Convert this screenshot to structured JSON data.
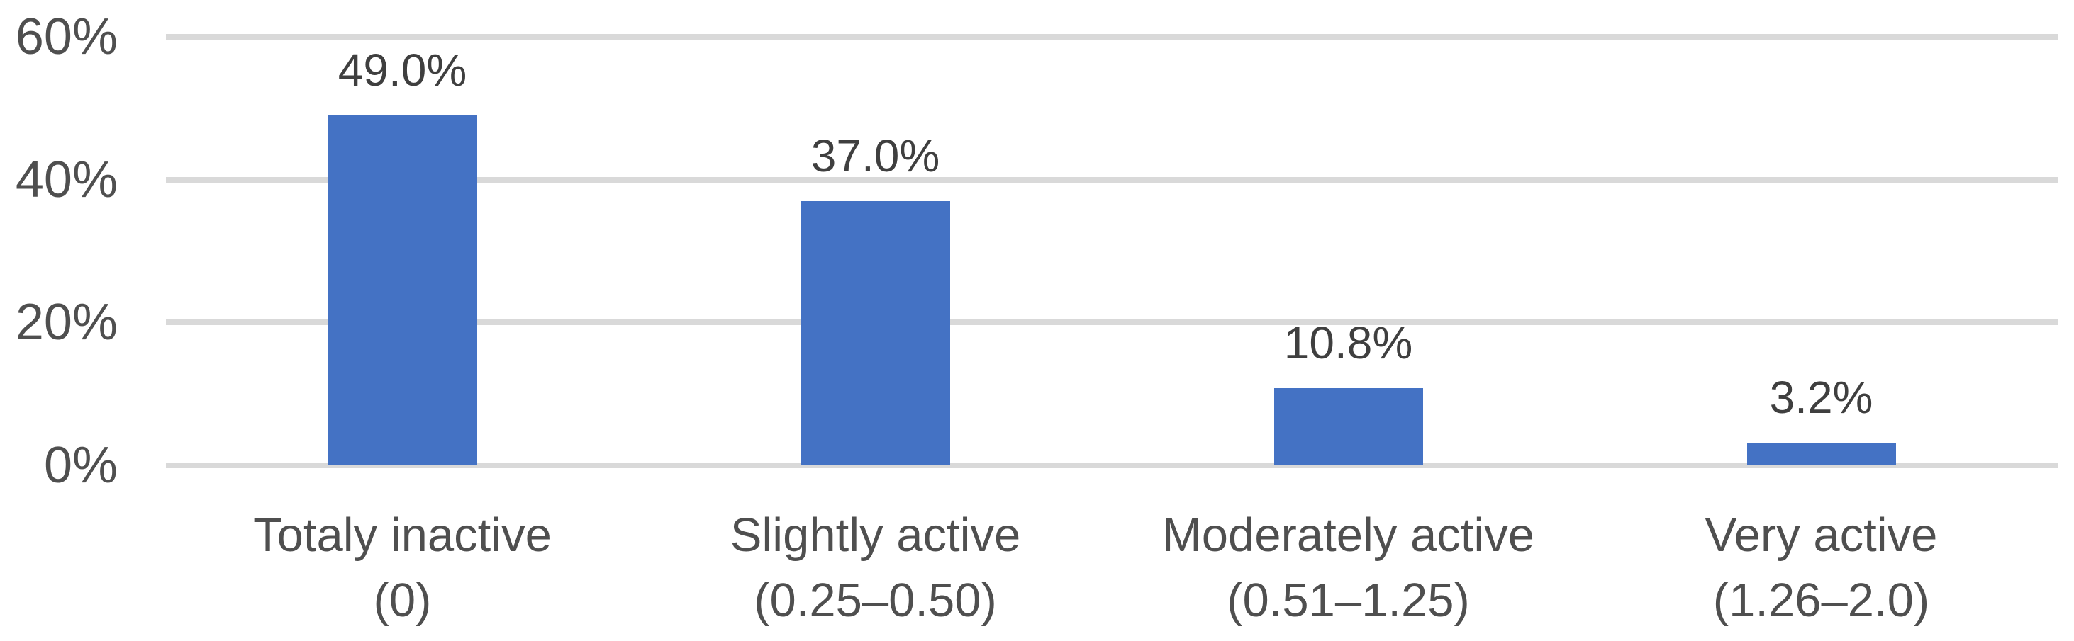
{
  "chart_data": {
    "type": "bar",
    "title": "",
    "xlabel": "",
    "ylabel": "",
    "categories": [
      {
        "line1": "Totaly inactive",
        "line2": "(0)"
      },
      {
        "line1": "Slightly active",
        "line2": "(0.25–0.50)"
      },
      {
        "line1": "Moderately active",
        "line2": "(0.51–1.25)"
      },
      {
        "line1": "Very active",
        "line2": "(1.26–2.0)"
      }
    ],
    "values": [
      49.0,
      37.0,
      10.8,
      3.2
    ],
    "value_labels": [
      "49.0%",
      "37.0%",
      "10.8%",
      "3.2%"
    ],
    "y_ticks": [
      "60%",
      "40%",
      "20%",
      "0%"
    ],
    "ylim": [
      0,
      60
    ],
    "grid": "horizontal gridlines every 20%",
    "legend_position": "none",
    "colors": {
      "bar": "#4472C4",
      "gridline": "#D9D9D9",
      "value_label_text": "#3F3F3F",
      "axis_text": "#4F4F4F"
    }
  }
}
